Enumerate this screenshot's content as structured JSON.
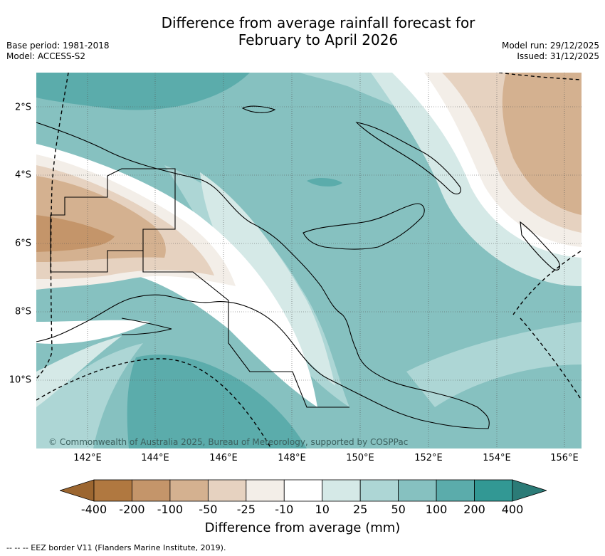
{
  "title": {
    "line1": "Difference from average rainfall forecast for",
    "line2": "February to April 2026"
  },
  "meta_left": {
    "base_period": "Base period: 1981-2018",
    "model": "Model: ACCESS-S2"
  },
  "meta_right": {
    "model_run": "Model run: 29/12/2025",
    "issued": "Issued: 31/12/2025"
  },
  "map": {
    "copyright": "© Commonwealth of Australia 2025, Bureau of Meteorology, supported by COSPPac",
    "x_ticks": [
      "142°E",
      "144°E",
      "146°E",
      "148°E",
      "150°E",
      "152°E",
      "154°E",
      "156°E"
    ],
    "y_ticks": [
      "2°S",
      "4°S",
      "6°S",
      "8°S",
      "10°S"
    ],
    "lon_range": [
      140.5,
      156.5
    ],
    "lat_range": [
      -12,
      -1
    ]
  },
  "legend": {
    "title": "Difference from average (mm)",
    "labels": [
      "-400",
      "-200",
      "-100",
      "-50",
      "-25",
      "-10",
      "10",
      "25",
      "50",
      "100",
      "200",
      "400"
    ],
    "colors": [
      "#9c6630",
      "#b07840",
      "#c4956a",
      "#d4b190",
      "#e6d2c0",
      "#f3eee8",
      "#ffffff",
      "#d5e9e7",
      "#add6d5",
      "#86c1c0",
      "#5bacab",
      "#329894",
      "#2b7b77"
    ]
  },
  "footnote": "--  --  -- EEZ border V11 (Flanders Marine Institute, 2019)."
}
